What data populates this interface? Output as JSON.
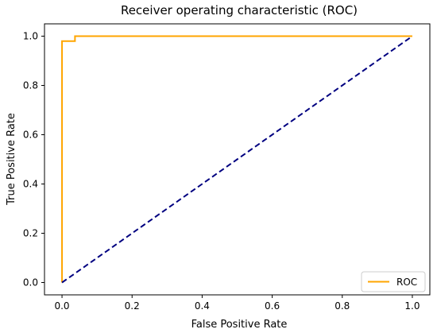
{
  "chart_data": {
    "type": "line",
    "title": "Receiver operating characteristic (ROC)",
    "xlabel": "False Positive Rate",
    "ylabel": "True Positive Rate",
    "xlim": [
      -0.05,
      1.05
    ],
    "ylim": [
      -0.05,
      1.05
    ],
    "x_ticks": [
      0.0,
      0.2,
      0.4,
      0.6,
      0.8,
      1.0
    ],
    "y_ticks": [
      0.0,
      0.2,
      0.4,
      0.6,
      0.8,
      1.0
    ],
    "x_tick_labels": [
      "0.0",
      "0.2",
      "0.4",
      "0.6",
      "0.8",
      "1.0"
    ],
    "y_tick_labels": [
      "0.0",
      "0.2",
      "0.4",
      "0.6",
      "0.8",
      "1.0"
    ],
    "grid": false,
    "legend_position": "lower right",
    "series": [
      {
        "name": "ROC",
        "color": "#FFA500",
        "line_style": "solid",
        "x": [
          0.0,
          0.0,
          0.0,
          0.037,
          0.037,
          1.0
        ],
        "y": [
          0.0,
          0.98,
          0.98,
          0.98,
          1.0,
          1.0
        ]
      },
      {
        "name": "",
        "color": "#000080",
        "line_style": "dashed",
        "x": [
          0.0,
          1.0
        ],
        "y": [
          0.0,
          1.0
        ]
      }
    ]
  }
}
